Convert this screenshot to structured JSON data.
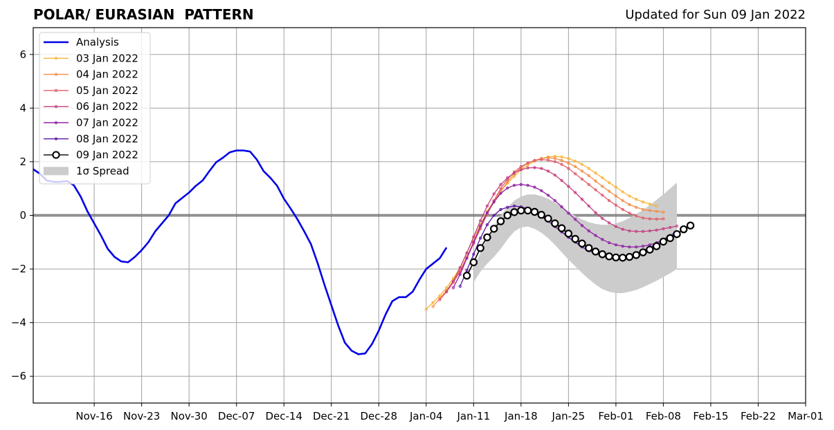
{
  "header": {
    "title": "POLAR/ EURASIAN  PATTERN",
    "updated": "Updated for Sun 09 Jan 2022"
  },
  "chart_data": {
    "type": "line",
    "title": "POLAR/ EURASIAN  PATTERN",
    "xlabel": "",
    "ylabel": "",
    "x_start_date": "2021-11-07",
    "xlim_days": [
      0,
      114
    ],
    "ylim": [
      -7,
      7
    ],
    "yticks": [
      -6,
      -4,
      -2,
      0,
      2,
      4,
      6
    ],
    "yticklabels": [
      "−6",
      "−4",
      "−2",
      "0",
      "2",
      "4",
      "6"
    ],
    "xticks_days": [
      9,
      16,
      23,
      30,
      37,
      44,
      51,
      58,
      65,
      72,
      79,
      86,
      93,
      100,
      107,
      114
    ],
    "xticklabels": [
      "Nov-16",
      "Nov-23",
      "Nov-30",
      "Dec-07",
      "Dec-14",
      "Dec-21",
      "Dec-28",
      "Jan-04",
      "Jan-11",
      "Jan-18",
      "Jan-25",
      "Feb-01",
      "Feb-08",
      "Feb-15",
      "Feb-22",
      "Mar-01"
    ],
    "grid": true,
    "zero_line": true,
    "legend_position": "top-left",
    "analysis": {
      "name": "Analysis",
      "color": "#0000e6",
      "x_start_day": 0,
      "values": [
        1.72,
        1.55,
        1.3,
        1.25,
        1.25,
        1.28,
        1.12,
        0.7,
        0.15,
        -0.3,
        -0.75,
        -1.25,
        -1.55,
        -1.72,
        -1.75,
        -1.55,
        -1.3,
        -1.0,
        -0.6,
        -0.3,
        0.0,
        0.45,
        0.65,
        0.85,
        1.1,
        1.3,
        1.65,
        1.98,
        2.15,
        2.35,
        2.42,
        2.42,
        2.38,
        2.08,
        1.65,
        1.4,
        1.1,
        0.62,
        0.25,
        -0.15,
        -0.6,
        -1.08,
        -1.8,
        -2.6,
        -3.35,
        -4.1,
        -4.75,
        -5.05,
        -5.18,
        -5.15,
        -4.8,
        -4.3,
        -3.7,
        -3.2,
        -3.05,
        -3.05,
        -2.85,
        -2.4,
        -2.0,
        -1.8,
        -1.6,
        -1.2
      ]
    },
    "spread": {
      "name": "1σ Spread",
      "color": "#cccccc",
      "x_start_day": 65,
      "upper": [
        -1.95,
        -1.4,
        -0.85,
        -0.4,
        0.0,
        0.3,
        0.55,
        0.7,
        0.78,
        0.78,
        0.72,
        0.62,
        0.48,
        0.32,
        0.15,
        -0.02,
        -0.15,
        -0.25,
        -0.32,
        -0.35,
        -0.35,
        -0.3,
        -0.22,
        -0.1,
        0.05,
        0.2,
        0.38,
        0.58,
        0.78,
        1.0,
        1.22
      ],
      "lower": [
        -2.5,
        -2.1,
        -1.8,
        -1.55,
        -1.25,
        -0.9,
        -0.6,
        -0.45,
        -0.42,
        -0.5,
        -0.65,
        -0.85,
        -1.1,
        -1.38,
        -1.65,
        -1.9,
        -2.15,
        -2.38,
        -2.58,
        -2.75,
        -2.85,
        -2.9,
        -2.9,
        -2.85,
        -2.78,
        -2.68,
        -2.56,
        -2.44,
        -2.3,
        -2.16,
        -2.0
      ]
    },
    "series": [
      {
        "name": "03 Jan 2022",
        "color": "#fbb43a",
        "x_start_day": 58,
        "values": [
          -3.5,
          -3.25,
          -3.0,
          -2.7,
          -2.35,
          -1.95,
          -1.4,
          -0.85,
          -0.35,
          0.15,
          0.55,
          0.9,
          1.2,
          1.45,
          1.7,
          1.88,
          2.02,
          2.12,
          2.18,
          2.2,
          2.18,
          2.12,
          2.02,
          1.9,
          1.75,
          1.58,
          1.4,
          1.22,
          1.05,
          0.88,
          0.72,
          0.6,
          0.5,
          0.42,
          0.35
        ]
      },
      {
        "name": "04 Jan 2022",
        "color": "#f58d48",
        "x_start_day": 59,
        "values": [
          -3.4,
          -3.1,
          -2.8,
          -2.45,
          -2.05,
          -1.55,
          -1.0,
          -0.45,
          0.05,
          0.5,
          0.9,
          1.25,
          1.55,
          1.78,
          1.95,
          2.05,
          2.12,
          2.15,
          2.12,
          2.05,
          1.95,
          1.82,
          1.65,
          1.48,
          1.28,
          1.08,
          0.9,
          0.72,
          0.55,
          0.4,
          0.3,
          0.22,
          0.18,
          0.15,
          0.12
        ]
      },
      {
        "name": "05 Jan 2022",
        "color": "#df5c6b",
        "x_start_day": 60,
        "values": [
          -3.15,
          -2.85,
          -2.5,
          -2.1,
          -1.6,
          -1.05,
          -0.5,
          0.05,
          0.55,
          1.0,
          1.35,
          1.62,
          1.82,
          1.95,
          2.05,
          2.08,
          2.06,
          2.0,
          1.9,
          1.75,
          1.55,
          1.35,
          1.15,
          0.95,
          0.75,
          0.55,
          0.38,
          0.22,
          0.08,
          -0.02,
          -0.1,
          -0.13,
          -0.14,
          -0.13
        ]
      },
      {
        "name": "06 Jan 2022",
        "color": "#c43e7f",
        "x_start_day": 61,
        "values": [
          -2.85,
          -2.45,
          -1.95,
          -1.4,
          -0.8,
          -0.2,
          0.35,
          0.8,
          1.15,
          1.4,
          1.58,
          1.7,
          1.77,
          1.78,
          1.75,
          1.65,
          1.5,
          1.3,
          1.08,
          0.85,
          0.6,
          0.35,
          0.1,
          -0.12,
          -0.28,
          -0.42,
          -0.52,
          -0.58,
          -0.6,
          -0.6,
          -0.58,
          -0.55,
          -0.5,
          -0.45,
          -0.4
        ]
      },
      {
        "name": "07 Jan 2022",
        "color": "#8e1fa3",
        "x_start_day": 62,
        "values": [
          -2.7,
          -2.2,
          -1.6,
          -1.0,
          -0.4,
          0.1,
          0.5,
          0.82,
          1.02,
          1.12,
          1.15,
          1.12,
          1.05,
          0.92,
          0.75,
          0.55,
          0.32,
          0.08,
          -0.15,
          -0.38,
          -0.58,
          -0.75,
          -0.9,
          -1.02,
          -1.1,
          -1.15,
          -1.18,
          -1.18,
          -1.15,
          -1.1,
          -1.02,
          -0.92,
          -0.8,
          -0.68,
          -0.55
        ]
      },
      {
        "name": "08 Jan 2022",
        "color": "#5b12a0",
        "x_start_day": 63,
        "values": [
          -2.65,
          -2.05,
          -1.45,
          -0.85,
          -0.35,
          0.0,
          0.22,
          0.3,
          0.35,
          0.32,
          0.25,
          0.12,
          -0.05,
          -0.22,
          -0.42,
          -0.62,
          -0.82,
          -1.0,
          -1.18,
          -1.32,
          -1.42,
          -1.5,
          -1.55,
          -1.55,
          -1.55,
          -1.5,
          -1.42,
          -1.32,
          -1.2,
          -1.05,
          -0.9,
          -0.75,
          -0.62
        ]
      },
      {
        "name": "09 Jan 2022",
        "color": "#000000",
        "x_start_day": 64,
        "values": [
          -2.25,
          -1.75,
          -1.22,
          -0.82,
          -0.5,
          -0.22,
          0.0,
          0.12,
          0.18,
          0.18,
          0.13,
          0.02,
          -0.12,
          -0.3,
          -0.48,
          -0.68,
          -0.88,
          -1.05,
          -1.22,
          -1.35,
          -1.45,
          -1.53,
          -1.57,
          -1.58,
          -1.55,
          -1.48,
          -1.38,
          -1.28,
          -1.15,
          -0.98,
          -0.85,
          -0.7,
          -0.52,
          -0.38
        ]
      }
    ],
    "legend": [
      "Analysis",
      "03 Jan 2022",
      "04 Jan 2022",
      "05 Jan 2022",
      "06 Jan 2022",
      "07 Jan 2022",
      "08 Jan 2022",
      "09 Jan 2022",
      "1σ Spread"
    ]
  }
}
